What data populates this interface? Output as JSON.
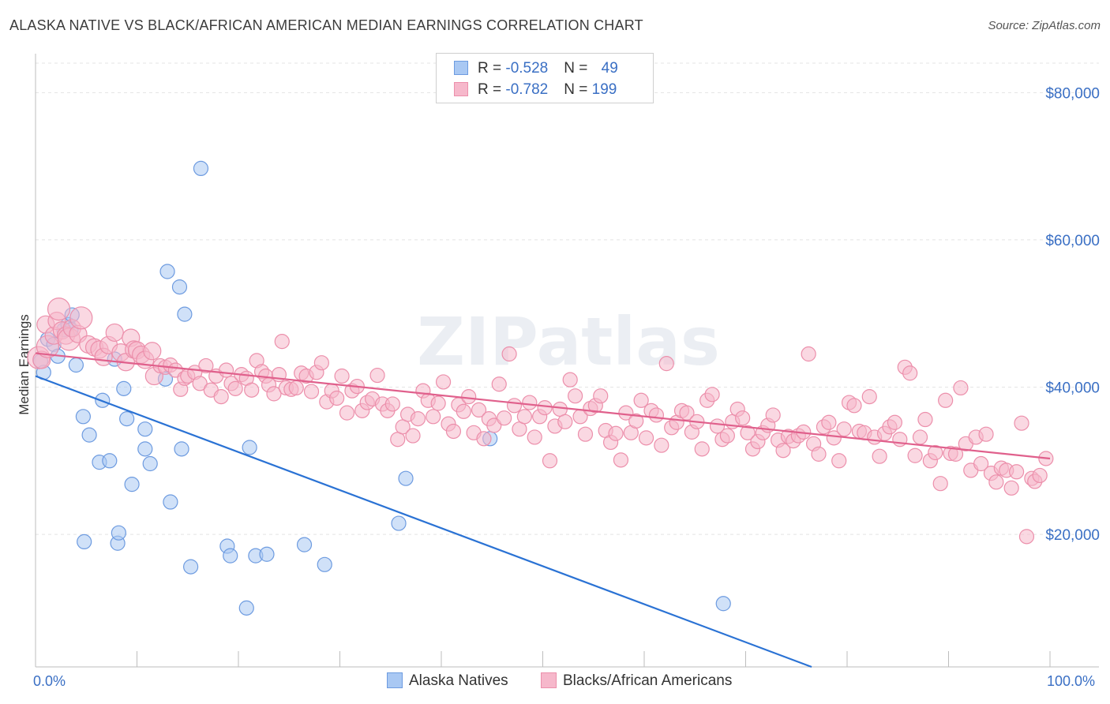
{
  "title": "ALASKA NATIVE VS BLACK/AFRICAN AMERICAN MEDIAN EARNINGS CORRELATION CHART",
  "source": "Source: ZipAtlas.com",
  "watermark": "ZIPatlas",
  "colors": {
    "blue_fill": "#a9c8f3",
    "blue_stroke": "#6d9be0",
    "blue_line": "#2a72d4",
    "pink_fill": "#f6b8cb",
    "pink_stroke": "#ec8fab",
    "pink_line": "#e0608c",
    "axis_text": "#3a6fc4"
  },
  "legend": {
    "rows": [
      {
        "r_label": "R = ",
        "r_value": "-0.528",
        "n_label": "N = ",
        "n_value": "49"
      },
      {
        "r_label": "R = ",
        "r_value": "-0.782",
        "n_label": "N = ",
        "n_value": "199"
      }
    ]
  },
  "bottom_legend": [
    "Alaska Natives",
    "Blacks/African Americans"
  ],
  "chart_data": {
    "type": "scatter",
    "title": "ALASKA NATIVE VS BLACK/AFRICAN AMERICAN MEDIAN EARNINGS CORRELATION CHART",
    "xlabel": "",
    "ylabel": "Median Earnings",
    "xlim": [
      0,
      100
    ],
    "ylim": [
      2000,
      84000
    ],
    "x_tick_labels": [
      "0.0%",
      "100.0%"
    ],
    "y_ticks": [
      20000,
      40000,
      60000,
      80000
    ],
    "y_tick_labels": [
      "$20,000",
      "$40,000",
      "$60,000",
      "$80,000"
    ],
    "grid": "horizontal dashed",
    "legend_position": "top-center",
    "series": [
      {
        "name": "Alaska Natives",
        "trend": {
          "x0": 0,
          "y0": 41500,
          "x1": 76.5,
          "y1": 2000
        },
        "points": [
          [
            0.5,
            43500
          ],
          [
            0.8,
            42000
          ],
          [
            1.2,
            46500
          ],
          [
            1.8,
            45800
          ],
          [
            2.2,
            44200
          ],
          [
            2.8,
            47800
          ],
          [
            3.2,
            48500
          ],
          [
            3.5,
            47800
          ],
          [
            3.6,
            49800
          ],
          [
            4.0,
            43000
          ],
          [
            4.7,
            36000
          ],
          [
            4.8,
            19000
          ],
          [
            5.3,
            33500
          ],
          [
            6.3,
            29800
          ],
          [
            6.6,
            38200
          ],
          [
            7.3,
            30000
          ],
          [
            7.8,
            43800
          ],
          [
            8.1,
            18800
          ],
          [
            8.2,
            20200
          ],
          [
            8.7,
            39800
          ],
          [
            9.0,
            35700
          ],
          [
            9.5,
            26800
          ],
          [
            10.8,
            34300
          ],
          [
            10.8,
            31600
          ],
          [
            11.3,
            29600
          ],
          [
            12.8,
            41100
          ],
          [
            13.0,
            55700
          ],
          [
            13.3,
            24400
          ],
          [
            14.2,
            53600
          ],
          [
            14.4,
            31600
          ],
          [
            14.7,
            49900
          ],
          [
            15.3,
            15600
          ],
          [
            16.3,
            69700
          ],
          [
            18.9,
            18400
          ],
          [
            19.2,
            17100
          ],
          [
            20.8,
            10000
          ],
          [
            21.1,
            31800
          ],
          [
            21.7,
            17100
          ],
          [
            22.8,
            17300
          ],
          [
            26.5,
            18600
          ],
          [
            28.5,
            15900
          ],
          [
            35.8,
            21500
          ],
          [
            36.5,
            27600
          ],
          [
            44.8,
            33000
          ],
          [
            67.8,
            10600
          ]
        ]
      },
      {
        "name": "Blacks/African Americans",
        "trend": {
          "x0": 0,
          "y0": 44600,
          "x1": 100,
          "y1": 30300
        },
        "points": [
          [
            0.3,
            44000
          ],
          [
            0.6,
            43700
          ],
          [
            1.0,
            48500
          ],
          [
            1.2,
            45500
          ],
          [
            1.8,
            47000
          ],
          [
            2.1,
            49000
          ],
          [
            2.3,
            50600
          ],
          [
            2.6,
            47700
          ],
          [
            3.0,
            47000
          ],
          [
            3.3,
            46500
          ],
          [
            3.6,
            48000
          ],
          [
            4.2,
            47200
          ],
          [
            4.5,
            49400
          ],
          [
            5.2,
            45800
          ],
          [
            5.8,
            45400
          ],
          [
            6.3,
            45100
          ],
          [
            6.7,
            44100
          ],
          [
            7.2,
            45700
          ],
          [
            7.8,
            47400
          ],
          [
            8.4,
            44700
          ],
          [
            8.9,
            43400
          ],
          [
            9.4,
            46700
          ],
          [
            9.7,
            45100
          ],
          [
            10.0,
            45000
          ],
          [
            10.4,
            44400
          ],
          [
            10.8,
            43700
          ],
          [
            11.5,
            44900
          ],
          [
            11.7,
            41500
          ],
          [
            12.3,
            42900
          ],
          [
            12.8,
            42700
          ],
          [
            13.3,
            43000
          ],
          [
            13.8,
            42300
          ],
          [
            14.3,
            39700
          ],
          [
            14.7,
            41200
          ],
          [
            15.0,
            41500
          ],
          [
            15.7,
            42000
          ],
          [
            16.2,
            40500
          ],
          [
            16.8,
            42900
          ],
          [
            17.3,
            39600
          ],
          [
            17.8,
            41500
          ],
          [
            18.3,
            38700
          ],
          [
            18.8,
            42300
          ],
          [
            19.3,
            40500
          ],
          [
            19.7,
            39800
          ],
          [
            20.3,
            41700
          ],
          [
            20.8,
            41200
          ],
          [
            21.3,
            39600
          ],
          [
            21.8,
            43600
          ],
          [
            22.3,
            42100
          ],
          [
            22.7,
            41500
          ],
          [
            23.0,
            40300
          ],
          [
            23.5,
            39100
          ],
          [
            24.0,
            41700
          ],
          [
            24.3,
            46200
          ],
          [
            24.7,
            39900
          ],
          [
            25.2,
            39700
          ],
          [
            25.7,
            39900
          ],
          [
            26.2,
            41900
          ],
          [
            26.7,
            41500
          ],
          [
            27.2,
            39400
          ],
          [
            27.7,
            42000
          ],
          [
            28.2,
            43300
          ],
          [
            28.7,
            38000
          ],
          [
            29.2,
            39500
          ],
          [
            29.7,
            38500
          ],
          [
            30.2,
            41500
          ],
          [
            30.7,
            36500
          ],
          [
            31.2,
            39500
          ],
          [
            31.7,
            40100
          ],
          [
            32.2,
            36800
          ],
          [
            32.7,
            37900
          ],
          [
            33.2,
            38400
          ],
          [
            33.7,
            41600
          ],
          [
            34.2,
            37700
          ],
          [
            34.7,
            36800
          ],
          [
            35.2,
            37700
          ],
          [
            35.7,
            32900
          ],
          [
            36.2,
            34600
          ],
          [
            36.7,
            36300
          ],
          [
            37.2,
            33400
          ],
          [
            37.7,
            35700
          ],
          [
            38.2,
            39500
          ],
          [
            38.7,
            38200
          ],
          [
            39.2,
            36000
          ],
          [
            39.7,
            37800
          ],
          [
            40.2,
            40700
          ],
          [
            40.7,
            35000
          ],
          [
            41.2,
            34000
          ],
          [
            41.7,
            37600
          ],
          [
            42.2,
            36700
          ],
          [
            42.7,
            38700
          ],
          [
            43.2,
            33800
          ],
          [
            43.7,
            36900
          ],
          [
            44.2,
            33000
          ],
          [
            44.7,
            35700
          ],
          [
            45.2,
            34800
          ],
          [
            45.7,
            40400
          ],
          [
            46.2,
            35800
          ],
          [
            46.7,
            44500
          ],
          [
            47.2,
            37500
          ],
          [
            47.7,
            34300
          ],
          [
            48.2,
            36000
          ],
          [
            48.7,
            37900
          ],
          [
            49.2,
            33200
          ],
          [
            49.7,
            36000
          ],
          [
            50.2,
            37200
          ],
          [
            50.7,
            30000
          ],
          [
            51.2,
            34700
          ],
          [
            51.7,
            37000
          ],
          [
            52.2,
            35300
          ],
          [
            52.7,
            41000
          ],
          [
            53.2,
            38800
          ],
          [
            53.7,
            36000
          ],
          [
            54.2,
            33600
          ],
          [
            54.7,
            37100
          ],
          [
            55.2,
            37500
          ],
          [
            55.7,
            38800
          ],
          [
            56.2,
            34100
          ],
          [
            56.7,
            32500
          ],
          [
            57.2,
            33700
          ],
          [
            57.7,
            30100
          ],
          [
            58.2,
            36500
          ],
          [
            58.7,
            33800
          ],
          [
            59.2,
            35400
          ],
          [
            59.7,
            38200
          ],
          [
            60.2,
            33100
          ],
          [
            60.7,
            36800
          ],
          [
            61.2,
            36200
          ],
          [
            61.7,
            32100
          ],
          [
            62.2,
            43200
          ],
          [
            62.7,
            34500
          ],
          [
            63.2,
            35200
          ],
          [
            63.7,
            36800
          ],
          [
            64.2,
            36500
          ],
          [
            64.7,
            33900
          ],
          [
            65.2,
            35300
          ],
          [
            65.7,
            31600
          ],
          [
            66.2,
            38200
          ],
          [
            66.7,
            39000
          ],
          [
            67.2,
            34700
          ],
          [
            67.7,
            32900
          ],
          [
            68.2,
            33400
          ],
          [
            68.7,
            35300
          ],
          [
            69.2,
            37000
          ],
          [
            69.7,
            35800
          ],
          [
            70.2,
            33800
          ],
          [
            70.7,
            31600
          ],
          [
            71.2,
            32600
          ],
          [
            71.7,
            33800
          ],
          [
            72.2,
            34800
          ],
          [
            72.7,
            36200
          ],
          [
            73.2,
            32800
          ],
          [
            73.7,
            31400
          ],
          [
            74.2,
            33300
          ],
          [
            74.7,
            32700
          ],
          [
            75.2,
            33400
          ],
          [
            75.7,
            33900
          ],
          [
            76.2,
            44500
          ],
          [
            76.7,
            32300
          ],
          [
            77.2,
            30900
          ],
          [
            77.7,
            34600
          ],
          [
            78.2,
            35200
          ],
          [
            78.7,
            33100
          ],
          [
            79.2,
            30000
          ],
          [
            79.7,
            34300
          ],
          [
            80.2,
            37900
          ],
          [
            80.7,
            37500
          ],
          [
            81.2,
            34000
          ],
          [
            81.7,
            33800
          ],
          [
            82.2,
            38700
          ],
          [
            82.7,
            33200
          ],
          [
            83.2,
            30600
          ],
          [
            83.7,
            33700
          ],
          [
            84.2,
            34600
          ],
          [
            84.7,
            35200
          ],
          [
            85.2,
            32900
          ],
          [
            85.7,
            42700
          ],
          [
            86.2,
            41900
          ],
          [
            86.7,
            30700
          ],
          [
            87.2,
            33200
          ],
          [
            87.7,
            35600
          ],
          [
            88.2,
            30000
          ],
          [
            88.7,
            31100
          ],
          [
            89.2,
            26900
          ],
          [
            89.7,
            38200
          ],
          [
            90.2,
            31000
          ],
          [
            90.7,
            30900
          ],
          [
            91.2,
            39900
          ],
          [
            91.7,
            32300
          ],
          [
            92.2,
            28700
          ],
          [
            92.7,
            33200
          ],
          [
            93.2,
            29600
          ],
          [
            93.7,
            33600
          ],
          [
            94.2,
            28300
          ],
          [
            94.7,
            27100
          ],
          [
            95.2,
            29000
          ],
          [
            95.7,
            28700
          ],
          [
            96.2,
            26300
          ],
          [
            96.7,
            28500
          ],
          [
            97.2,
            35100
          ],
          [
            97.7,
            19700
          ],
          [
            98.2,
            27600
          ],
          [
            98.5,
            27200
          ],
          [
            99.0,
            28000
          ],
          [
            99.6,
            30300
          ]
        ]
      }
    ]
  }
}
